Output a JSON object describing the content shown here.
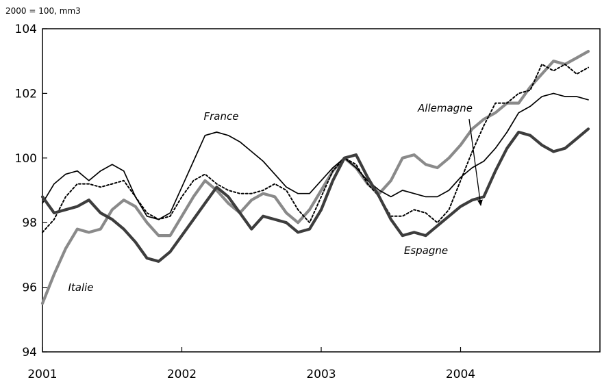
{
  "chart_data": {
    "type": "line",
    "unit_label": "2000 = 100, mm3",
    "xlabel": "",
    "ylabel": "",
    "x_ticks": [
      "2001",
      "2002",
      "2003",
      "2004"
    ],
    "y_ticks": [
      "94",
      "96",
      "98",
      "100",
      "102",
      "104"
    ],
    "ylim": [
      94,
      104
    ],
    "x_start": "2001-01",
    "x_end": "2004-12",
    "grid": false,
    "legend": "none",
    "series": [
      {
        "name": "France",
        "color": "#000000",
        "style": "thin-solid",
        "values": [
          98.6,
          99.2,
          99.5,
          99.6,
          99.3,
          99.6,
          99.8,
          99.6,
          98.8,
          98.2,
          98.1,
          98.3,
          99.1,
          99.9,
          100.7,
          100.8,
          100.7,
          100.5,
          100.2,
          99.9,
          99.5,
          99.1,
          98.9,
          98.9,
          99.3,
          99.7,
          100.0,
          99.7,
          99.3,
          99.0,
          98.8,
          99.0,
          98.9,
          98.8,
          98.8,
          99.0,
          99.4,
          99.7,
          99.9,
          100.3,
          100.8,
          101.4,
          101.6,
          101.9,
          102.0,
          101.9,
          101.9,
          101.8
        ]
      },
      {
        "name": "Allemagne",
        "color": "#000000",
        "style": "dotted",
        "values": [
          97.7,
          98.1,
          98.8,
          99.2,
          99.2,
          99.1,
          99.2,
          99.3,
          98.8,
          98.3,
          98.1,
          98.2,
          98.8,
          99.3,
          99.5,
          99.2,
          99.0,
          98.9,
          98.9,
          99.0,
          99.2,
          99.0,
          98.4,
          98.0,
          98.8,
          99.6,
          100.0,
          99.8,
          99.2,
          98.8,
          98.2,
          98.2,
          98.4,
          98.3,
          98.0,
          98.4,
          99.3,
          100.2,
          101.0,
          101.7,
          101.7,
          102.0,
          102.1,
          102.9,
          102.7,
          102.9,
          102.6,
          102.8
        ]
      },
      {
        "name": "Italie",
        "color": "#8a8a8a",
        "style": "thick-solid",
        "values": [
          95.5,
          96.4,
          97.2,
          97.8,
          97.7,
          97.8,
          98.4,
          98.7,
          98.5,
          98.0,
          97.6,
          97.6,
          98.2,
          98.8,
          99.3,
          99.0,
          98.6,
          98.3,
          98.7,
          98.9,
          98.8,
          98.3,
          98.0,
          98.4,
          99.0,
          99.6,
          100.0,
          99.7,
          99.2,
          98.9,
          99.3,
          100.0,
          100.1,
          99.8,
          99.7,
          100.0,
          100.4,
          100.9,
          101.2,
          101.4,
          101.7,
          101.7,
          102.2,
          102.6,
          103.0,
          102.9,
          103.1,
          103.3
        ]
      },
      {
        "name": "Espagne",
        "color": "#3d3d3d",
        "style": "thick-solid",
        "values": [
          98.8,
          98.3,
          98.4,
          98.5,
          98.7,
          98.3,
          98.1,
          97.8,
          97.4,
          96.9,
          96.8,
          97.1,
          97.6,
          98.1,
          98.6,
          99.1,
          98.8,
          98.3,
          97.8,
          98.2,
          98.1,
          98.0,
          97.7,
          97.8,
          98.4,
          99.3,
          100.0,
          100.1,
          99.4,
          98.8,
          98.1,
          97.6,
          97.7,
          97.6,
          97.9,
          98.2,
          98.5,
          98.7,
          98.8,
          99.6,
          100.3,
          100.8,
          100.7,
          100.4,
          100.2,
          100.3,
          100.6,
          100.9
        ]
      }
    ],
    "annotations": [
      {
        "text": "France",
        "series": "France"
      },
      {
        "text": "Allemagne",
        "series": "Allemagne",
        "arrow": true
      },
      {
        "text": "Italie",
        "series": "Italie"
      },
      {
        "text": "Espagne",
        "series": "Espagne"
      }
    ]
  }
}
